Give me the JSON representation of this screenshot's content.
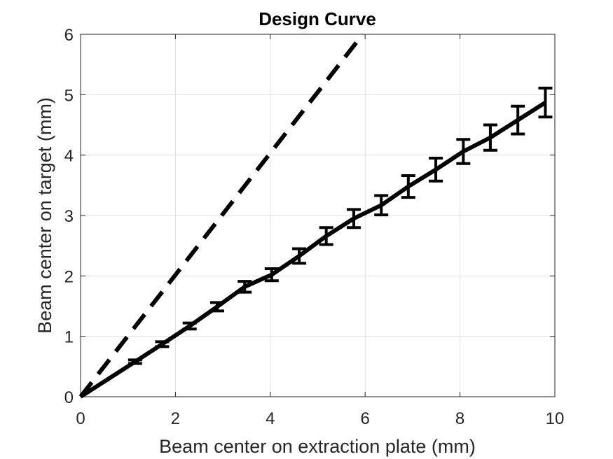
{
  "chart_data": {
    "type": "line",
    "title": "Design Curve",
    "xlabel": "Beam center on extraction plate (mm)",
    "ylabel": "Beam center on target (mm)",
    "xlim": [
      0,
      10
    ],
    "ylim": [
      0,
      6
    ],
    "xticks": [
      0,
      2,
      4,
      6,
      8,
      10
    ],
    "yticks": [
      0,
      1,
      2,
      3,
      4,
      5,
      6
    ],
    "grid": true,
    "colors": {
      "line": "#000000",
      "axis": "#262626",
      "grid": "#dfdfdf"
    },
    "series": [
      {
        "style": "dashed",
        "x": [
          0,
          5.95
        ],
        "y": [
          0,
          6.0
        ]
      },
      {
        "style": "solid",
        "errorbars": true,
        "x": [
          0,
          1.15,
          1.72,
          2.3,
          2.88,
          3.46,
          4.03,
          4.61,
          5.18,
          5.76,
          6.34,
          6.91,
          7.49,
          8.07,
          8.64,
          9.22,
          9.8
        ],
        "y": [
          0,
          0.58,
          0.87,
          1.17,
          1.49,
          1.82,
          2.02,
          2.33,
          2.66,
          2.95,
          3.17,
          3.48,
          3.76,
          4.06,
          4.29,
          4.58,
          4.87
        ],
        "err": [
          0,
          0.03,
          0.04,
          0.05,
          0.07,
          0.09,
          0.1,
          0.12,
          0.14,
          0.15,
          0.16,
          0.18,
          0.19,
          0.2,
          0.21,
          0.23,
          0.24
        ]
      }
    ]
  }
}
